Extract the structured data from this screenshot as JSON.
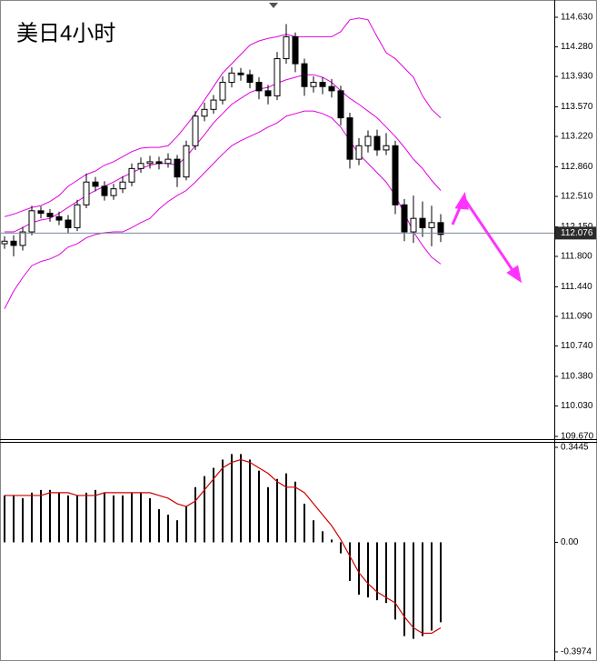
{
  "chart_data": [
    {
      "type": "candlestick",
      "title": "美日4小时",
      "title_color": "#e8392b",
      "open": [
        111.95,
        111.98,
        111.93,
        112.09,
        112.34,
        112.31,
        112.27,
        112.23,
        112.14,
        112.41,
        112.68,
        112.63,
        112.52,
        112.6,
        112.68,
        112.84,
        112.9,
        112.92,
        112.9,
        112.95,
        112.74,
        113.11,
        113.46,
        113.54,
        113.65,
        113.86,
        113.97,
        113.95,
        113.86,
        113.76,
        113.7,
        114.14,
        114.4,
        114.08,
        113.81,
        113.86,
        113.81,
        113.76,
        113.44,
        112.95,
        113.11,
        113.22,
        113.06,
        113.11,
        112.41,
        112.09,
        112.25,
        112.14,
        112.2
      ],
      "high": [
        112.04,
        112.05,
        112.15,
        112.4,
        112.39,
        112.36,
        112.33,
        112.29,
        112.47,
        112.78,
        112.74,
        112.69,
        112.66,
        112.75,
        112.9,
        112.97,
        112.99,
        112.98,
        113.02,
        113.0,
        113.17,
        113.52,
        113.62,
        113.71,
        113.93,
        114.04,
        114.03,
        114.01,
        113.92,
        113.83,
        114.22,
        114.55,
        114.45,
        114.14,
        113.93,
        113.92,
        113.9,
        113.82,
        113.5,
        113.2,
        113.29,
        113.3,
        113.26,
        113.17,
        112.48,
        112.52,
        112.45,
        112.4,
        112.3
      ],
      "low": [
        111.89,
        111.8,
        111.87,
        112.05,
        112.25,
        112.21,
        112.17,
        112.07,
        112.1,
        112.37,
        112.57,
        112.46,
        112.47,
        112.55,
        112.63,
        112.79,
        112.84,
        112.83,
        112.85,
        112.62,
        112.7,
        113.06,
        113.4,
        113.49,
        113.6,
        113.8,
        113.88,
        113.79,
        113.66,
        113.6,
        113.65,
        114.08,
        113.98,
        113.7,
        113.74,
        113.72,
        113.68,
        113.35,
        112.84,
        112.88,
        113.03,
        112.99,
        113.0,
        112.3,
        111.98,
        111.96,
        112.03,
        111.92,
        111.97
      ],
      "close": [
        111.98,
        111.93,
        112.09,
        112.34,
        112.31,
        112.27,
        112.23,
        112.14,
        112.41,
        112.68,
        112.63,
        112.52,
        112.6,
        112.68,
        112.84,
        112.9,
        112.92,
        112.9,
        112.95,
        112.74,
        113.11,
        113.46,
        113.54,
        113.65,
        113.86,
        113.97,
        113.95,
        113.86,
        113.76,
        113.7,
        114.14,
        114.4,
        114.08,
        113.81,
        113.86,
        113.81,
        113.76,
        113.44,
        112.95,
        113.11,
        113.22,
        113.06,
        113.11,
        112.41,
        112.09,
        112.25,
        112.14,
        112.2,
        112.06
      ],
      "series": [
        {
          "color": "#e000e0",
          "values": [
            112.27,
            112.3,
            112.34,
            112.38,
            112.4,
            112.45,
            112.52,
            112.63,
            112.7,
            112.77,
            112.81,
            112.88,
            112.92,
            112.98,
            113.04,
            113.08,
            113.09,
            113.09,
            113.11,
            113.22,
            113.35,
            113.49,
            113.65,
            113.81,
            113.97,
            114.08,
            114.19,
            114.3,
            114.35,
            114.38,
            114.4,
            114.43,
            114.4,
            114.4,
            114.4,
            114.4,
            114.4,
            114.46,
            114.6,
            114.62,
            114.6,
            114.4,
            114.21,
            114.14,
            114.03,
            113.92,
            113.7,
            113.54,
            113.44
          ]
        },
        {
          "color": "#e000e0",
          "values": [
            112.09,
            112.09,
            112.14,
            112.2,
            112.23,
            112.25,
            112.31,
            112.38,
            112.45,
            112.52,
            112.58,
            112.63,
            112.68,
            112.74,
            112.79,
            112.84,
            112.88,
            112.9,
            112.9,
            112.88,
            112.98,
            113.11,
            113.24,
            113.38,
            113.49,
            113.6,
            113.67,
            113.74,
            113.78,
            113.8,
            113.85,
            113.89,
            113.92,
            113.95,
            113.95,
            113.92,
            113.86,
            113.76,
            113.67,
            113.6,
            113.52,
            113.44,
            113.33,
            113.22,
            113.09,
            112.95,
            112.84,
            112.7,
            112.58
          ]
        },
        {
          "color": "#e000e0",
          "values": [
            111.18,
            111.39,
            111.55,
            111.69,
            111.74,
            111.77,
            111.82,
            111.91,
            111.95,
            112.02,
            112.06,
            112.08,
            112.09,
            112.09,
            112.14,
            112.2,
            112.25,
            112.36,
            112.45,
            112.52,
            112.58,
            112.68,
            112.79,
            112.9,
            113.01,
            113.11,
            113.17,
            113.22,
            113.27,
            113.33,
            113.38,
            113.46,
            113.49,
            113.52,
            113.52,
            113.49,
            113.44,
            113.33,
            113.17,
            113.01,
            112.9,
            112.79,
            112.68,
            112.52,
            112.31,
            112.09,
            111.93,
            111.79,
            111.71
          ]
        }
      ],
      "last_price": 112.076,
      "ylim": [
        109.648,
        114.813
      ],
      "yticks": [
        {
          "value": 114.63,
          "label": "114.630"
        },
        {
          "value": 114.28,
          "label": "114.280"
        },
        {
          "value": 113.93,
          "label": "113.930"
        },
        {
          "value": 113.57,
          "label": "113.570"
        },
        {
          "value": 113.22,
          "label": "113.220"
        },
        {
          "value": 112.86,
          "label": "112.860"
        },
        {
          "value": 112.51,
          "label": "112.510"
        },
        {
          "value": 112.15,
          "label": "112.150"
        },
        {
          "value": 111.8,
          "label": "111.800"
        },
        {
          "value": 111.44,
          "label": "111.440"
        },
        {
          "value": 111.09,
          "label": "111.090"
        },
        {
          "value": 110.74,
          "label": "110.740"
        },
        {
          "value": 110.38,
          "label": "110.380"
        },
        {
          "value": 110.03,
          "label": "110.030"
        },
        {
          "value": 109.67,
          "label": "109.670"
        }
      ]
    },
    {
      "type": "macd",
      "series": [
        {
          "type": "bar",
          "color": "#000000",
          "values": [
            0.17,
            0.17,
            0.16,
            0.18,
            0.19,
            0.19,
            0.18,
            0.17,
            0.17,
            0.18,
            0.19,
            0.18,
            0.17,
            0.17,
            0.18,
            0.18,
            0.16,
            0.12,
            0.1,
            0.08,
            0.13,
            0.2,
            0.24,
            0.27,
            0.3,
            0.32,
            0.32,
            0.3,
            0.26,
            0.2,
            0.23,
            0.25,
            0.22,
            0.14,
            0.08,
            0.04,
            0.01,
            -0.04,
            -0.14,
            -0.19,
            -0.2,
            -0.21,
            -0.22,
            -0.28,
            -0.34,
            -0.35,
            -0.34,
            -0.32,
            -0.29
          ]
        },
        {
          "type": "line",
          "color": "#cc0000",
          "values": [
            0.17,
            0.17,
            0.17,
            0.17,
            0.17,
            0.18,
            0.18,
            0.18,
            0.17,
            0.17,
            0.17,
            0.18,
            0.18,
            0.18,
            0.18,
            0.18,
            0.18,
            0.17,
            0.16,
            0.14,
            0.13,
            0.15,
            0.19,
            0.23,
            0.27,
            0.29,
            0.3,
            0.29,
            0.27,
            0.25,
            0.22,
            0.2,
            0.2,
            0.18,
            0.14,
            0.1,
            0.06,
            0.01,
            -0.05,
            -0.11,
            -0.15,
            -0.18,
            -0.2,
            -0.22,
            -0.27,
            -0.31,
            -0.33,
            -0.33,
            -0.31
          ]
        }
      ],
      "ylim": [
        -0.414,
        0.361
      ],
      "yticks": [
        0.3445,
        {
          "value": 0,
          "label": "0.00"
        },
        -0.3974
      ]
    }
  ]
}
